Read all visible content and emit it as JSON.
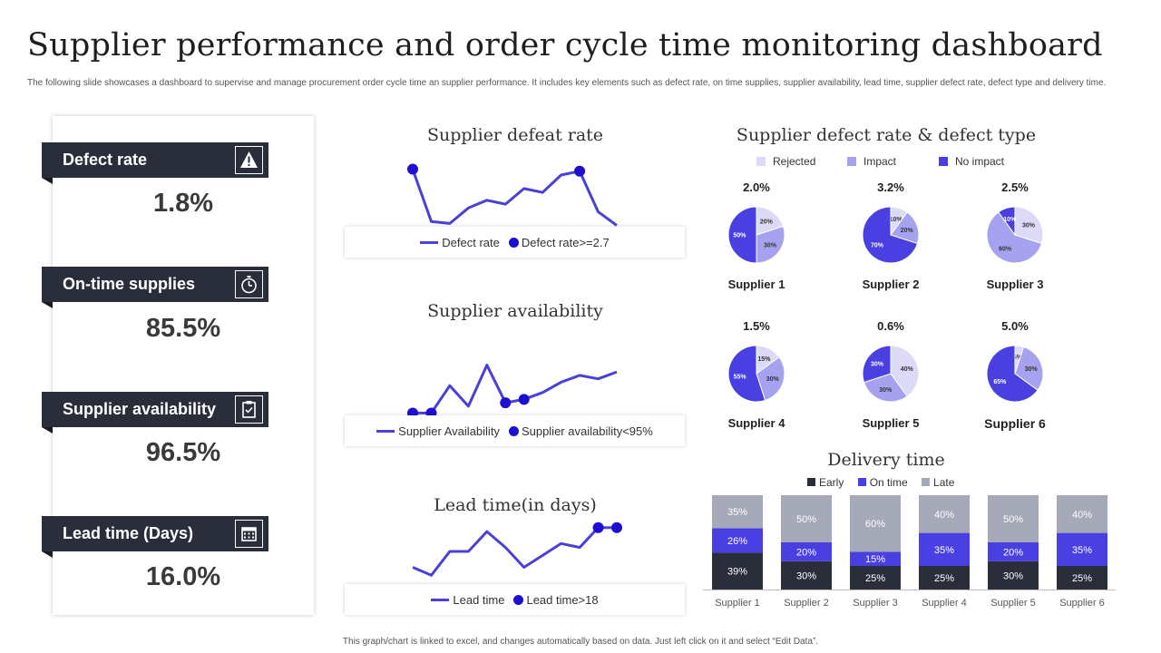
{
  "title": "Supplier performance and order cycle time monitoring dashboard",
  "subtitle": "The following slide showcases a dashboard to supervise and manage procurement order cycle time an supplier performance. It includes key elements such as defect rate, on time supplies, supplier availability, lead time, supplier defect rate, defect type and delivery time.",
  "footer": "This graph/chart is linked to excel, and changes automatically based on data. Just left click on it and select “Edit Data”.",
  "colors": {
    "dark": "#2a2d3a",
    "line": "#4b40d6",
    "marker": "#1d0fd1",
    "rejected": "#dcdaf7",
    "impact": "#a7a2ef",
    "no_impact": "#4a3fe0",
    "early": "#2a2d3a",
    "on_time": "#4a3fe0",
    "late": "#a5a9b8"
  },
  "kpis": [
    {
      "label": "Defect rate",
      "value": "1.8%",
      "icon": "warning-icon"
    },
    {
      "label": "On-time  supplies",
      "value": "85.5%",
      "icon": "stopwatch-icon"
    },
    {
      "label": "Supplier  availability",
      "value": "96.5%",
      "icon": "clipboard-icon"
    },
    {
      "label": "Lead time (Days)",
      "value": "16.0%",
      "icon": "calendar-icon"
    }
  ],
  "chart_data": [
    {
      "type": "line",
      "title": "Supplier defeat rate",
      "series": [
        {
          "name": "Defect rate",
          "values": [
            3.2,
            0.5,
            0.4,
            1.2,
            1.6,
            1.4,
            2.2,
            2.0,
            2.9,
            3.1,
            1.0,
            0.3
          ]
        },
        {
          "name": "Defect rate>=2.7",
          "values": [
            3.2,
            null,
            null,
            null,
            null,
            null,
            null,
            null,
            null,
            3.1,
            null,
            null
          ]
        }
      ],
      "ylim": [
        0,
        3.6
      ]
    },
    {
      "type": "line",
      "title": "Supplier availability",
      "series": [
        {
          "name": "Supplier Availability",
          "values": [
            93,
            93,
            97,
            94,
            100,
            94.5,
            95,
            96,
            97.5,
            98.5,
            98,
            99
          ]
        },
        {
          "name": "Supplier availability<95%",
          "values": [
            93,
            93,
            null,
            null,
            null,
            94.5,
            95,
            null,
            null,
            null,
            null,
            null
          ]
        }
      ],
      "ylim": [
        92,
        101
      ]
    },
    {
      "type": "line",
      "title": "Lead time(in days)",
      "series": [
        {
          "name": "Lead time",
          "values": [
            8,
            6,
            12,
            12,
            17,
            13,
            8,
            11,
            14,
            13,
            18,
            18
          ]
        },
        {
          "name": "Lead time>18",
          "values": [
            null,
            null,
            null,
            null,
            null,
            null,
            null,
            null,
            null,
            null,
            18,
            18
          ]
        }
      ],
      "ylim": [
        4,
        20
      ]
    },
    {
      "type": "pie",
      "title": "Supplier defect rate & defect type",
      "legend": [
        "Rejected",
        "Impact",
        "No impact"
      ],
      "suppliers": [
        {
          "name": "Supplier 1",
          "rate": "2.0%",
          "values": [
            20,
            30,
            50
          ],
          "labels": [
            "20%",
            "30%",
            "50%"
          ]
        },
        {
          "name": "Supplier 2",
          "rate": "3.2%",
          "values": [
            10,
            20,
            70
          ],
          "labels": [
            "10%",
            "20%",
            "70%"
          ]
        },
        {
          "name": "Supplier 3",
          "rate": "2.5%",
          "values": [
            30,
            60,
            10
          ],
          "labels": [
            "30%",
            "60%",
            "10%"
          ]
        },
        {
          "name": "Supplier 4",
          "rate": "1.5%",
          "values": [
            15,
            30,
            55
          ],
          "labels": [
            "15%",
            "30%",
            "55%"
          ]
        },
        {
          "name": "Supplier 5",
          "rate": "0.6%",
          "values": [
            40,
            30,
            30
          ],
          "labels": [
            "40%",
            "30%",
            "30%"
          ]
        },
        {
          "name": "Supplier 6",
          "rate": "5.0%",
          "values": [
            5,
            30,
            65
          ],
          "labels": [
            "5%",
            "30%",
            "65%"
          ]
        }
      ]
    },
    {
      "type": "bar",
      "stacked": true,
      "title": "Delivery time",
      "categories": [
        "Supplier 1",
        "Supplier 2",
        "Supplier 3",
        "Supplier 4",
        "Supplier 5",
        "Supplier 6"
      ],
      "series": [
        {
          "name": "Early",
          "values": [
            39,
            30,
            25,
            25,
            30,
            25
          ]
        },
        {
          "name": "On time",
          "values": [
            26,
            20,
            15,
            35,
            20,
            35
          ]
        },
        {
          "name": "Late",
          "values": [
            35,
            50,
            60,
            40,
            50,
            40
          ]
        }
      ],
      "ylim": [
        0,
        100
      ]
    }
  ]
}
